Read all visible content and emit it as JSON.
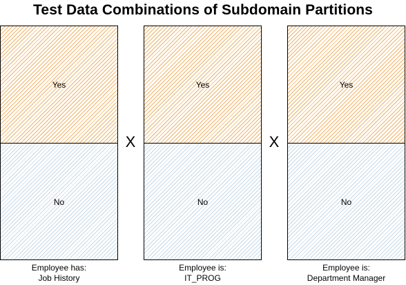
{
  "title": "Test Data Combinations of Subdomain Partitions",
  "operator": "X",
  "partitions": [
    {
      "yes_label": "Yes",
      "no_label": "No",
      "caption_line1": "Employee has:",
      "caption_line2": "Job History"
    },
    {
      "yes_label": "Yes",
      "no_label": "No",
      "caption_line1": "Employee is:",
      "caption_line2": "IT_PROG"
    },
    {
      "yes_label": "Yes",
      "no_label": "No",
      "caption_line1": "Employee is:",
      "caption_line2": "Department Manager"
    }
  ],
  "colors": {
    "yes_hatch": "#f0b266",
    "no_hatch": "#c7d9e6"
  }
}
